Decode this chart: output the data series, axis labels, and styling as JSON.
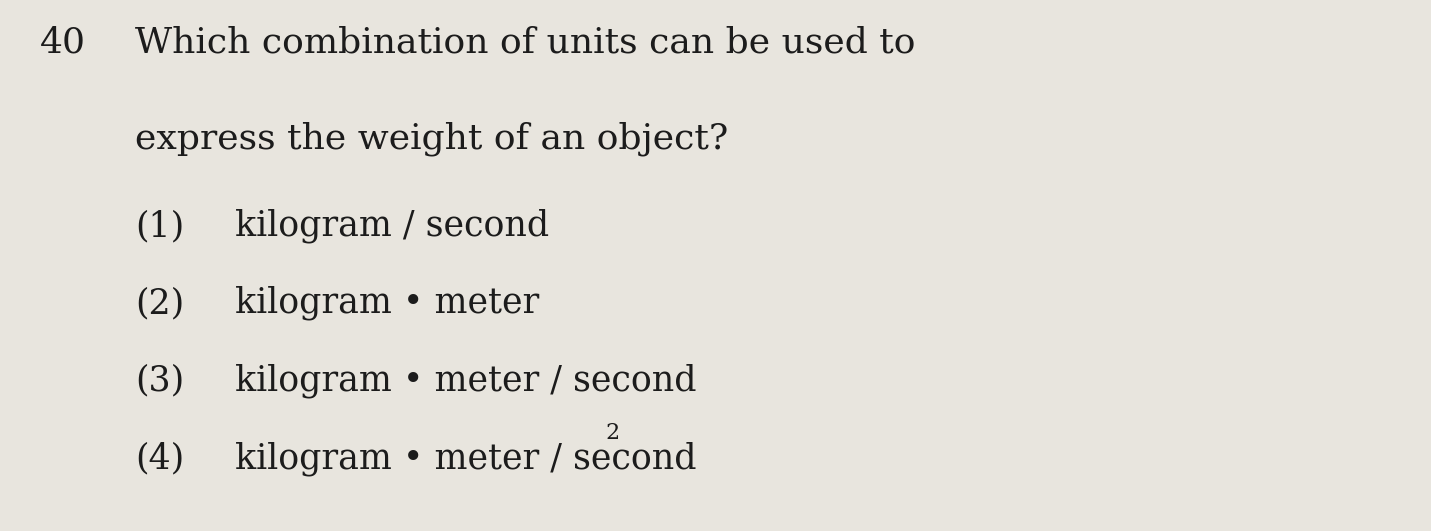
{
  "background_color": "#e8e5de",
  "text_color": "#1c1c1c",
  "question_number": "40",
  "question_line1": "Which combination of units can be used to",
  "question_line2": "express the weight of an object?",
  "opt1_num": "(1)",
  "opt1_text": "kilogram / second",
  "opt2_num": "(2)",
  "opt2_text": "kilogram • meter",
  "opt3_num": "(3)",
  "opt3_text": "kilogram • meter / second",
  "opt4_num": "(4)",
  "opt4_text": "kilogram • meter / second",
  "opt4_super": "2",
  "figsize": [
    14.31,
    5.31
  ],
  "dpi": 100,
  "font_size_main": 26,
  "font_size_opt": 25,
  "font_size_super": 16
}
